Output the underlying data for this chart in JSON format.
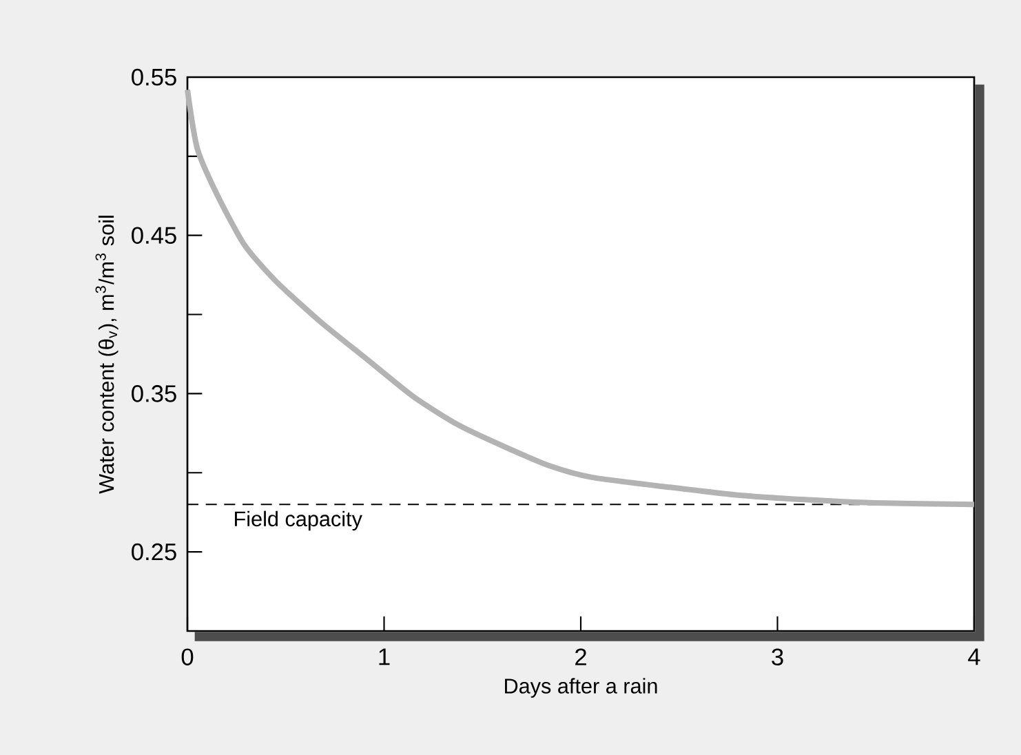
{
  "chart_data": {
    "type": "line",
    "xlabel": "Days after a rain",
    "ylabel": "Water content (θ$_{v}$), m$^{3}$/m$^{3}$ soil",
    "x": [
      0,
      0.05,
      0.15,
      0.29,
      0.45,
      0.68,
      0.92,
      1.15,
      1.38,
      1.62,
      1.85,
      2.06,
      2.44,
      2.79,
      3.14,
      3.49,
      4.0
    ],
    "series": [
      {
        "color": "#b3b3b3",
        "values": [
          0.542,
          0.505,
          0.476,
          0.444,
          0.421,
          0.395,
          0.371,
          0.348,
          0.33,
          0.316,
          0.304,
          0.297,
          0.291,
          0.286,
          0.283,
          0.281,
          0.28
        ]
      }
    ],
    "xlim": [
      0,
      4
    ],
    "ylim": [
      0.2,
      0.55
    ],
    "xticks": [
      0,
      1,
      2,
      3,
      4
    ],
    "yticks": [
      0.25,
      {
        "value": 0.3,
        "label": null
      },
      0.35,
      {
        "value": 0.4,
        "label": null
      },
      0.45,
      {
        "value": 0.5,
        "label": null
      },
      0.55
    ],
    "ref_lines": [
      {
        "axis": "y",
        "value": 0.28,
        "label": "Field capacity",
        "color": "#000000",
        "line_style": "dashed"
      }
    ],
    "grid": false,
    "marker": "none",
    "line_style": "solid"
  }
}
